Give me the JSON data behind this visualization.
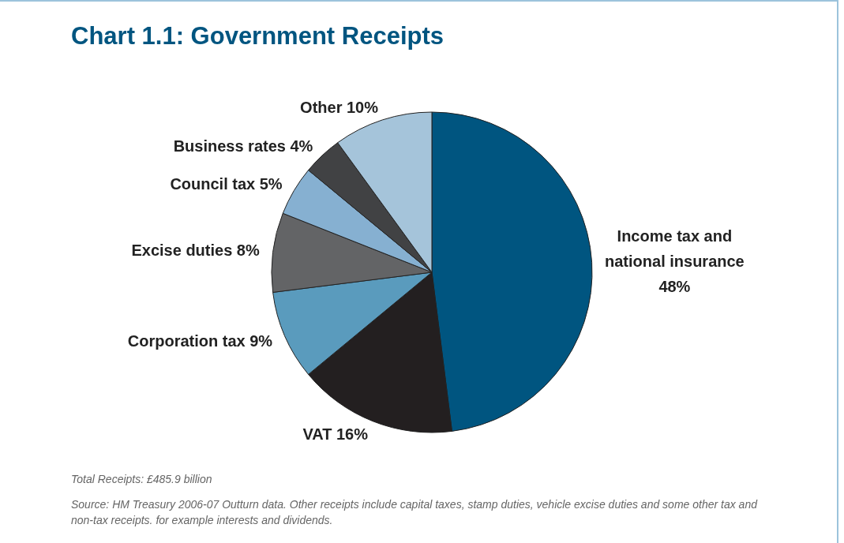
{
  "chart_data": {
    "type": "pie",
    "title": "Chart 1.1: Government Receipts",
    "categories": [
      "Income tax and national insurance",
      "VAT",
      "Corporation tax",
      "Excise duties",
      "Council tax",
      "Business rates",
      "Other"
    ],
    "values": [
      48,
      16,
      9,
      8,
      5,
      4,
      10
    ],
    "colors": [
      "#005580",
      "#231f20",
      "#5a9bbd",
      "#636466",
      "#86b0d1",
      "#414244",
      "#a5c4da"
    ],
    "value_labels": [
      "48%",
      "16%",
      "9%",
      "8%",
      "5%",
      "4%",
      "10%"
    ],
    "annotations": [
      "Total Receipts: £485.9 billion",
      "Source: HM Treasury 2006-07 Outturn data. Other receipts include capital taxes, stamp duties, vehicle excise duties and some other tax and non-tax receipts. for example interests and dividends."
    ]
  }
}
